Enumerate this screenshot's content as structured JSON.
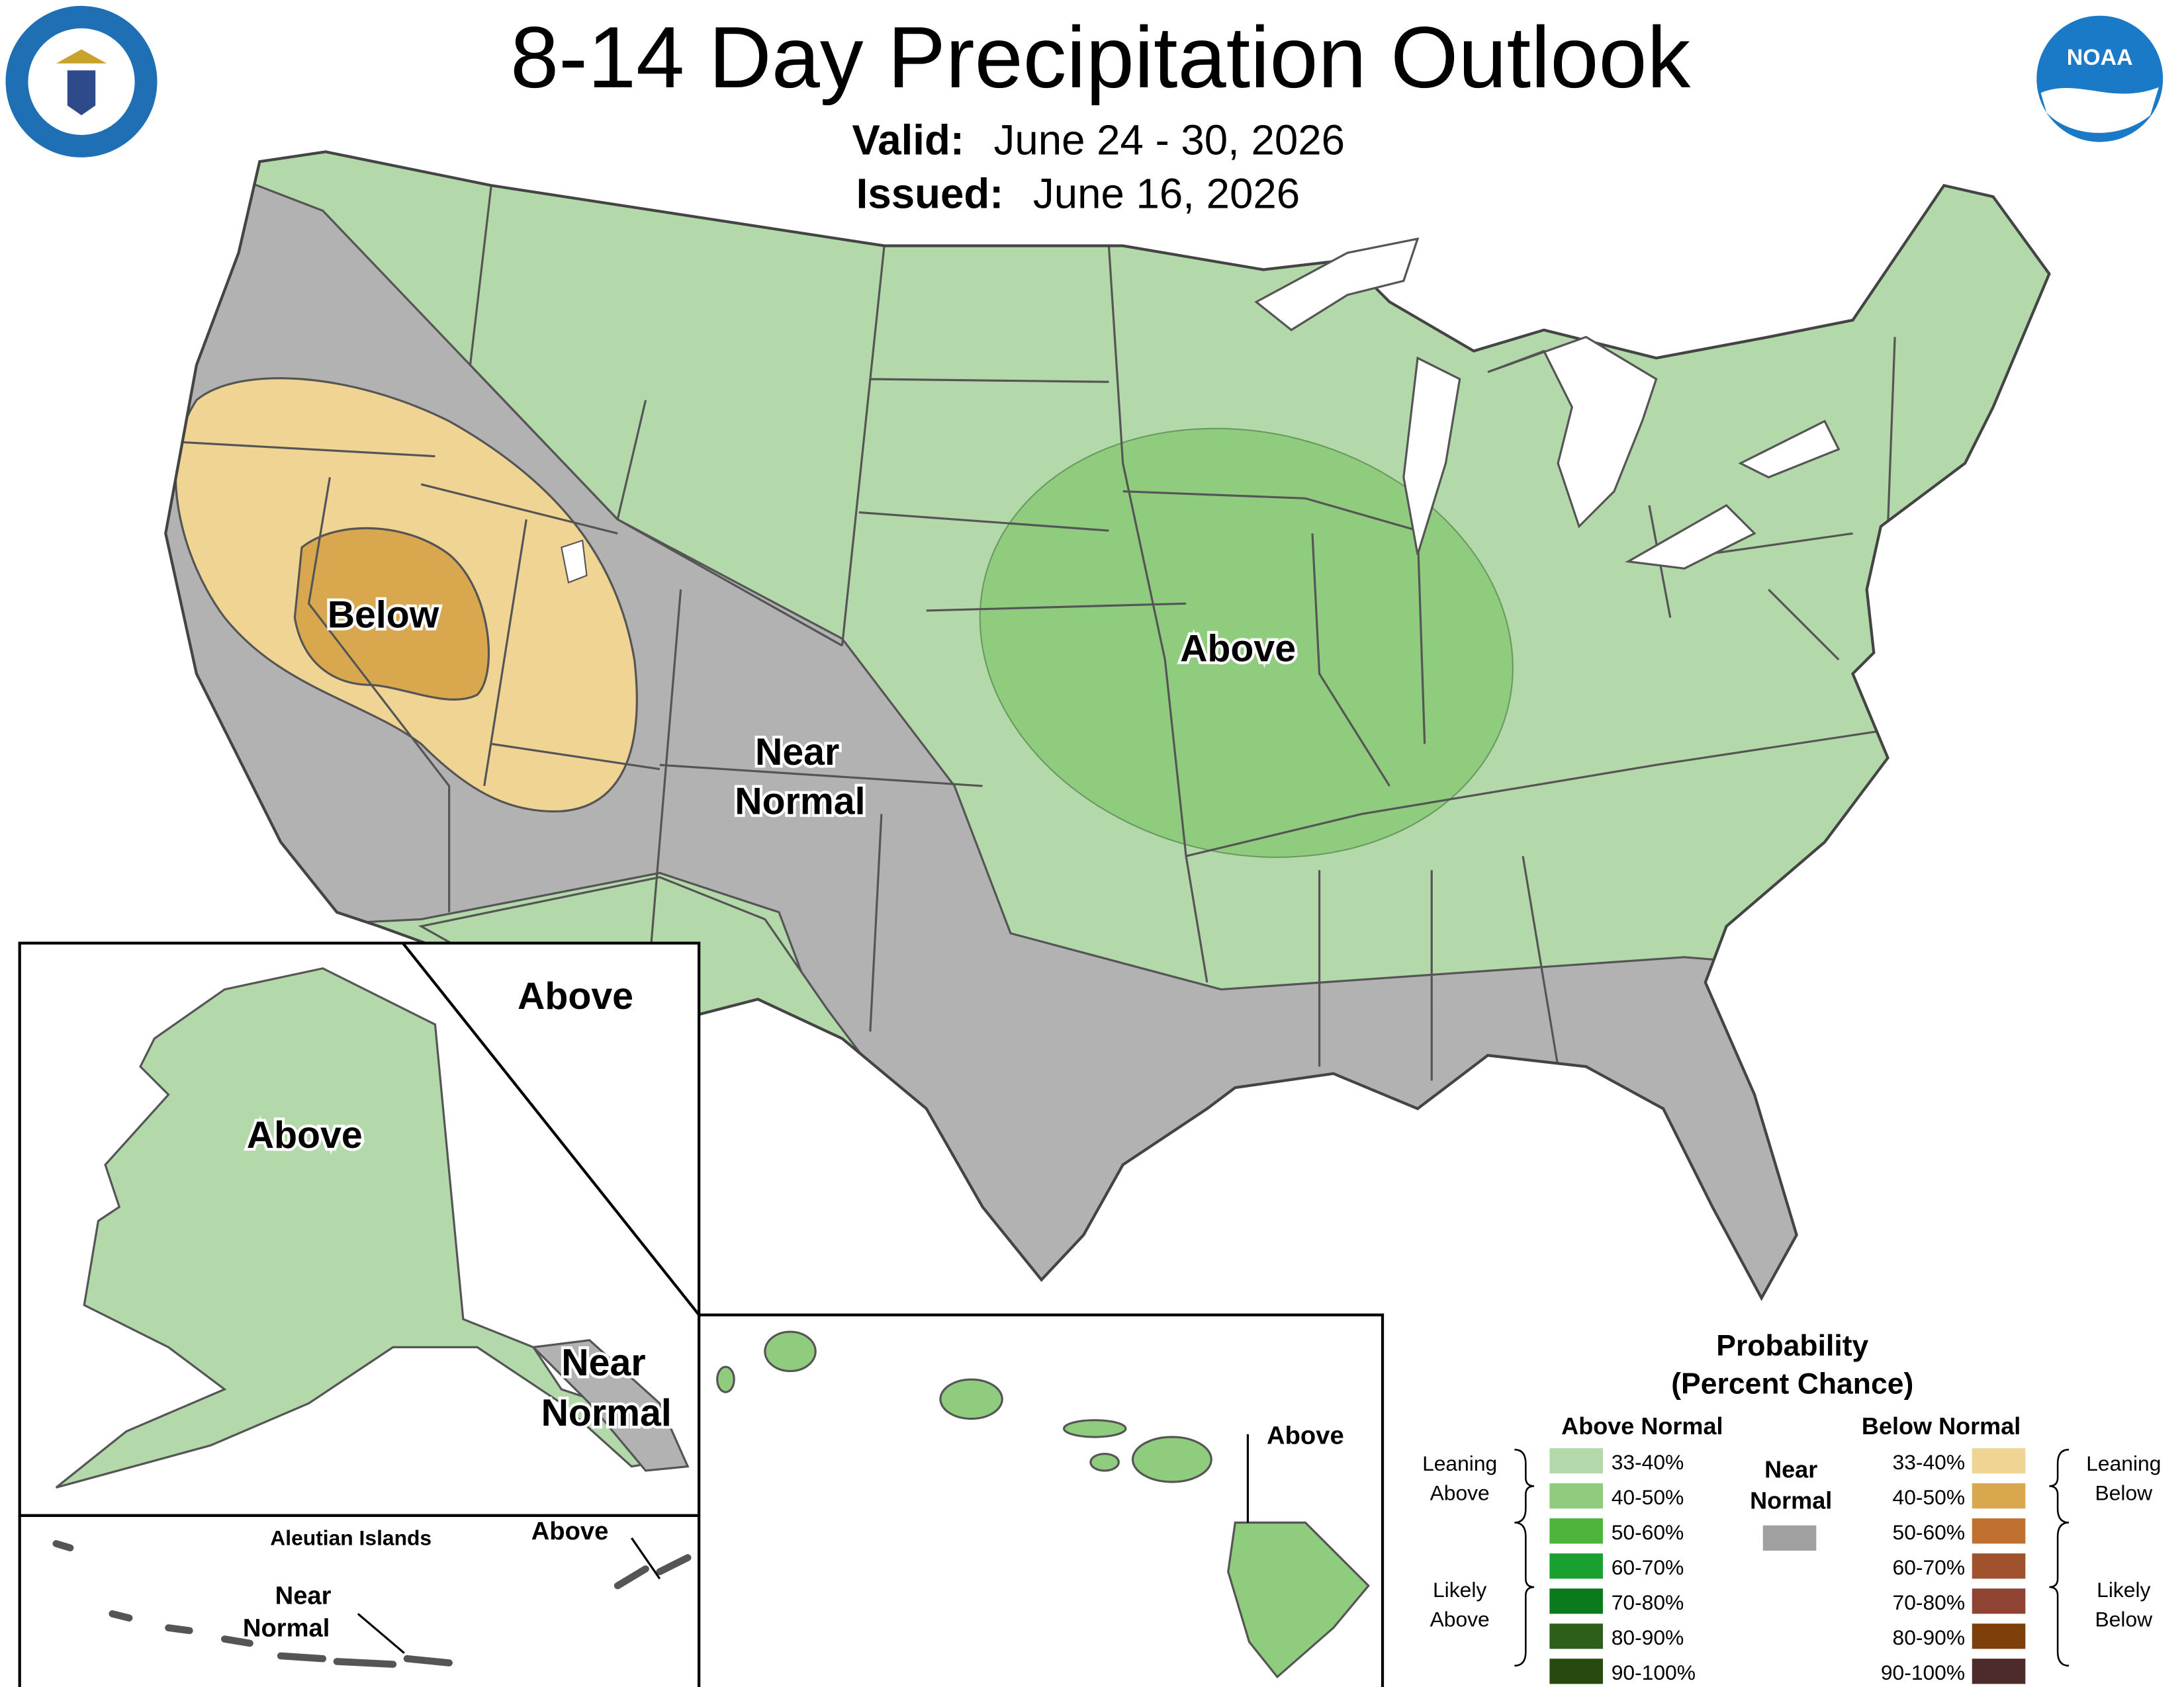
{
  "header": {
    "title": "8-14 Day Precipitation Outlook",
    "valid_label": "Valid:",
    "valid": "June 24 - 30, 2026",
    "issued_label": "Issued:",
    "issued": "June 16, 2026"
  },
  "logo": "NOAA",
  "map_labels": {
    "conus": [
      {
        "lines": [
          "Below"
        ]
      },
      {
        "lines": [
          "Above"
        ]
      },
      {
        "lines": [
          "Near",
          "Normal"
        ]
      },
      {
        "lines": [
          "Above"
        ]
      }
    ],
    "alaska": [
      {
        "lines": [
          "Above"
        ]
      },
      {
        "lines": [
          "Near",
          "Normal"
        ]
      }
    ],
    "aleutians": {
      "title": "Aleutian Islands",
      "labels": [
        {
          "lines": [
            "Above"
          ]
        },
        {
          "lines": [
            "Near",
            "Normal"
          ]
        }
      ]
    },
    "hawaii": [
      {
        "lines": [
          "Above"
        ]
      }
    ]
  },
  "legend": {
    "title": [
      "Probability",
      "(Percent Chance)"
    ],
    "above": {
      "heading": "Above Normal",
      "bins": [
        {
          "label": "33-40%",
          "color": "#b3d9ab"
        },
        {
          "label": "40-50%",
          "color": "#8fcc7e"
        },
        {
          "label": "50-60%",
          "color": "#4db33d"
        },
        {
          "label": "60-70%",
          "color": "#19a030"
        },
        {
          "label": "70-80%",
          "color": "#0a7a1a"
        },
        {
          "label": "80-90%",
          "color": "#2d5f1a"
        },
        {
          "label": "90-100%",
          "color": "#264a10"
        }
      ]
    },
    "below": {
      "heading": "Below Normal",
      "bins": [
        {
          "label": "33-40%",
          "color": "#f0d494"
        },
        {
          "label": "40-50%",
          "color": "#d9a84e"
        },
        {
          "label": "50-60%",
          "color": "#c0712f"
        },
        {
          "label": "60-70%",
          "color": "#a0522d"
        },
        {
          "label": "70-80%",
          "color": "#8f4434"
        },
        {
          "label": "80-90%",
          "color": "#7f3f0a"
        },
        {
          "label": "90-100%",
          "color": "#4d2b2b"
        }
      ]
    },
    "near": {
      "label": [
        "Near",
        "Normal"
      ],
      "color": "#a0a0a0"
    },
    "groups": {
      "leaning_above": [
        "Leaning",
        "Above"
      ],
      "likely_above": [
        "Likely",
        "Above"
      ],
      "leaning_below": [
        "Leaning",
        "Below"
      ],
      "likely_below": [
        "Likely",
        "Below"
      ]
    }
  }
}
